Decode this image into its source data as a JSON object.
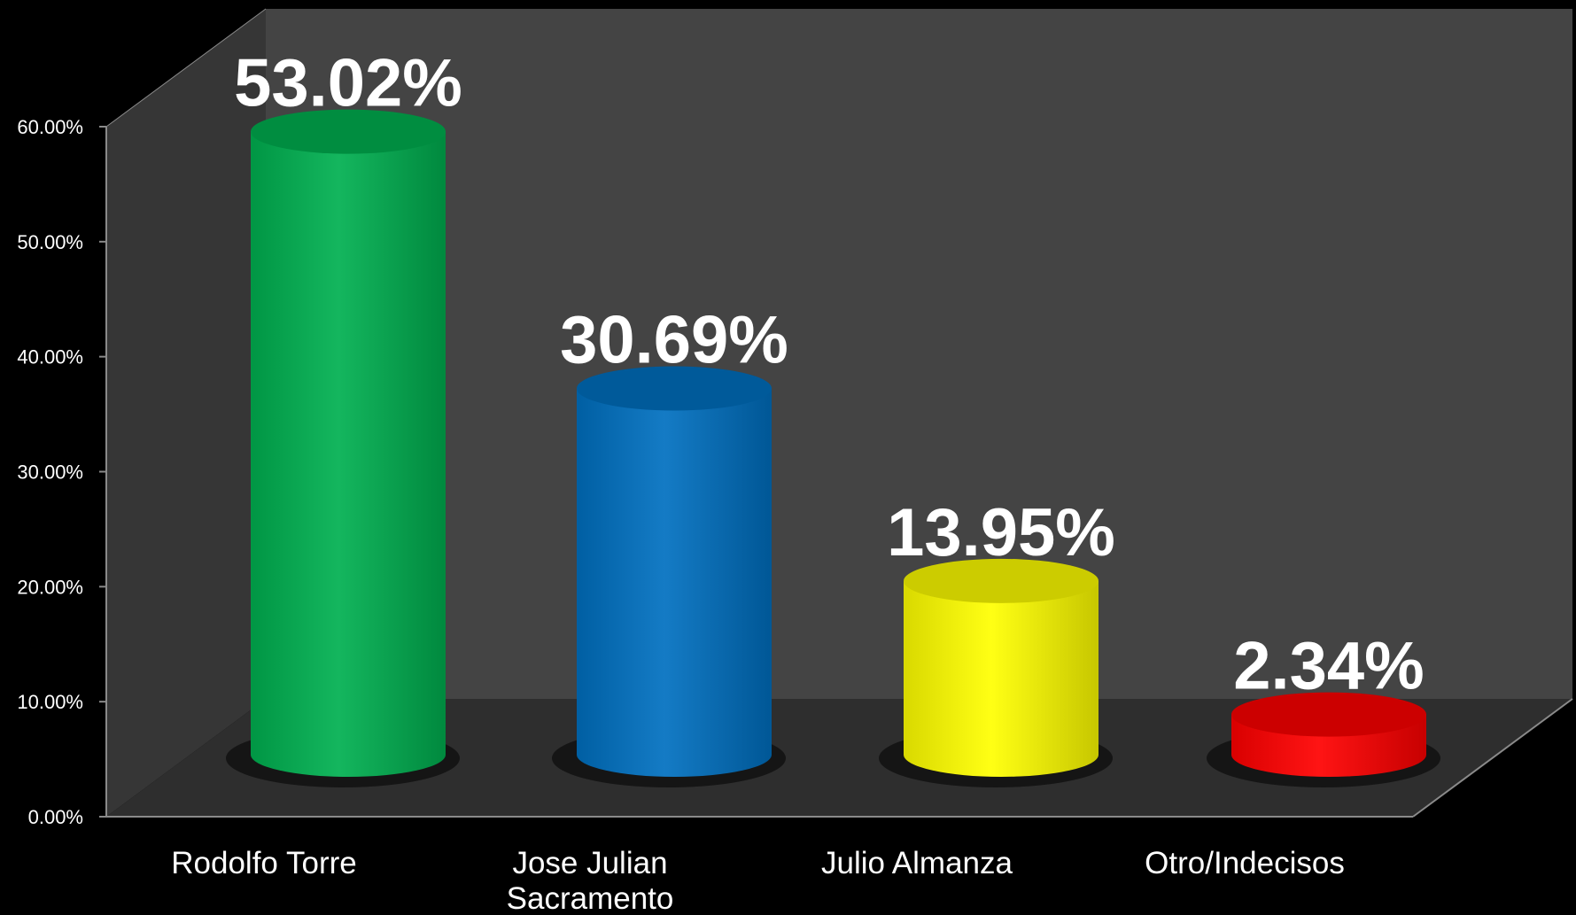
{
  "chart_data": {
    "type": "bar",
    "style": "3d-cylinder",
    "categories": [
      [
        "Rodolfo Torre"
      ],
      [
        "Jose Julian",
        "Sacramento"
      ],
      [
        "Julio Almanza"
      ],
      [
        "Otro/Indecisos"
      ]
    ],
    "values": [
      53.02,
      30.69,
      13.95,
      2.34
    ],
    "data_labels": [
      "53.02%",
      "30.69%",
      "13.95%",
      "2.34%"
    ],
    "bar_colors": [
      "#00b050",
      "#0070c0",
      "#ffff00",
      "#ff0000"
    ],
    "ylim": [
      0,
      60
    ],
    "yticks": [
      "0.00%",
      "10.00%",
      "20.00%",
      "30.00%",
      "40.00%",
      "50.00%",
      "60.00%"
    ],
    "title": "",
    "xlabel": "",
    "ylabel": "",
    "grid": false,
    "legend": "none",
    "colors": {
      "background": "#000000",
      "back_wall": "#444444",
      "side_wall": "#363636",
      "floor": "#2e2e2e",
      "axis_line": "#8a8a8a"
    }
  }
}
